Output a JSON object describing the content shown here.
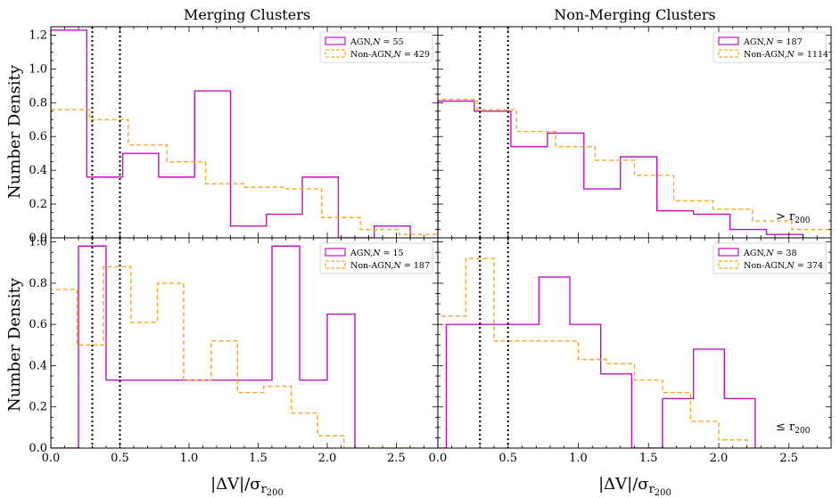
{
  "figure": {
    "col_titles": [
      "Merging Clusters",
      "Non-Merging Clusters"
    ],
    "ylabel": "Number Density",
    "xlabel_main": "|ΔV|/σ",
    "xlabel_sub": "r",
    "xlabel_subsub": "200"
  },
  "colors": {
    "agn": "#c010c0",
    "nonagn": "#f5a623",
    "vline": "#000000"
  },
  "chart_data": [
    {
      "type": "step-histogram",
      "panel": "top-left",
      "title": "Merging Clusters",
      "annotation": "",
      "xlim": [
        0,
        2.8
      ],
      "ylim": [
        0,
        1.25
      ],
      "xticks": [
        "0.0",
        "0.5",
        "1.0",
        "1.5",
        "2.0",
        "2.5"
      ],
      "yticks": [
        "0.0",
        "0.2",
        "0.4",
        "0.6",
        "0.8",
        "1.0",
        "1.2"
      ],
      "ytick_values": [
        0,
        0.2,
        0.4,
        0.6,
        0.8,
        1.0,
        1.2
      ],
      "vlines": [
        0.3,
        0.5
      ],
      "series": [
        {
          "name": "AGN,N = 55",
          "legend_base": "AGN,",
          "legend_n": "N",
          "legend_val": " = 55",
          "style": "solid",
          "edges": [
            0,
            0.26,
            0.52,
            0.78,
            1.04,
            1.3,
            1.56,
            1.82,
            2.08,
            2.34,
            2.6
          ],
          "values": [
            1.23,
            0.36,
            0.5,
            0.36,
            0.87,
            0.07,
            0.14,
            0.36,
            0.0,
            0.07
          ]
        },
        {
          "name": "Non-AGN,N = 429",
          "legend_base": "Non-AGN,",
          "legend_n": "N",
          "legend_val": " = 429",
          "style": "dashed",
          "edges": [
            0,
            0.28,
            0.56,
            0.84,
            1.12,
            1.4,
            1.68,
            1.96,
            2.24,
            2.52,
            2.8
          ],
          "values": [
            0.76,
            0.7,
            0.55,
            0.45,
            0.32,
            0.3,
            0.29,
            0.12,
            0.05,
            0.02
          ]
        }
      ]
    },
    {
      "type": "step-histogram",
      "panel": "top-right",
      "title": "Non-Merging Clusters",
      "annotation": "> r",
      "annotation_sub": "200",
      "xlim": [
        0,
        2.8
      ],
      "ylim": [
        0,
        1.25
      ],
      "xticks": [
        "0.0",
        "0.5",
        "1.0",
        "1.5",
        "2.0",
        "2.5"
      ],
      "yticks": [],
      "ytick_values": [
        0,
        0.2,
        0.4,
        0.6,
        0.8,
        1.0,
        1.2
      ],
      "vlines": [
        0.3,
        0.5
      ],
      "series": [
        {
          "name": "AGN,N = 187",
          "legend_base": "AGN,",
          "legend_n": "N",
          "legend_val": " = 187",
          "style": "solid",
          "edges": [
            0,
            0.26,
            0.52,
            0.78,
            1.04,
            1.3,
            1.56,
            1.82,
            2.08,
            2.34,
            2.6
          ],
          "values": [
            0.81,
            0.75,
            0.54,
            0.62,
            0.29,
            0.48,
            0.16,
            0.14,
            0.05,
            0.02
          ]
        },
        {
          "name": "Non-AGN,N = 1114",
          "legend_base": "Non-AGN,",
          "legend_n": "N",
          "legend_val": " = 1114",
          "style": "dashed",
          "edges": [
            0,
            0.28,
            0.56,
            0.84,
            1.12,
            1.4,
            1.68,
            1.96,
            2.24,
            2.52,
            2.8
          ],
          "values": [
            0.82,
            0.76,
            0.63,
            0.54,
            0.46,
            0.37,
            0.22,
            0.17,
            0.1,
            0.05
          ]
        }
      ]
    },
    {
      "type": "step-histogram",
      "panel": "bottom-left",
      "title": "",
      "annotation": "",
      "xlim": [
        0,
        2.8
      ],
      "ylim": [
        0,
        1.02
      ],
      "xticks": [
        "0.0",
        "0.5",
        "1.0",
        "1.5",
        "2.0",
        "2.5"
      ],
      "yticks": [
        "0.0",
        "0.2",
        "0.4",
        "0.6",
        "0.8",
        "1.0"
      ],
      "ytick_values": [
        0,
        0.2,
        0.4,
        0.6,
        0.8,
        1.0
      ],
      "vlines": [
        0.3,
        0.5
      ],
      "series": [
        {
          "name": "AGN,N = 15",
          "legend_base": "AGN,",
          "legend_n": "N",
          "legend_val": " = 15",
          "style": "solid",
          "edges": [
            0,
            0.2,
            0.4,
            0.6,
            0.8,
            1.0,
            1.2,
            1.4,
            1.6,
            1.8,
            2.0,
            2.2
          ],
          "values": [
            0.0,
            0.98,
            0.33,
            0.33,
            0.33,
            0.33,
            0.33,
            0.33,
            0.98,
            0.33,
            0.65
          ]
        },
        {
          "name": "Non-AGN,N = 187",
          "legend_base": "Non-AGN,",
          "legend_n": "N",
          "legend_val": " = 187",
          "style": "dashed",
          "edges": [
            0,
            0.19,
            0.38,
            0.58,
            0.77,
            0.96,
            1.16,
            1.35,
            1.54,
            1.74,
            1.93,
            2.12,
            2.32,
            2.51,
            2.7
          ],
          "values": [
            0.77,
            0.5,
            0.88,
            0.61,
            0.8,
            0.33,
            0.52,
            0.27,
            0.3,
            0.17,
            0.06,
            0.0,
            0.0,
            0.0
          ]
        }
      ]
    },
    {
      "type": "step-histogram",
      "panel": "bottom-right",
      "title": "",
      "annotation": "≤ r",
      "annotation_sub": "200",
      "xlim": [
        0,
        2.8
      ],
      "ylim": [
        0,
        1.02
      ],
      "xticks": [
        "0.0",
        "0.5",
        "1.0",
        "1.5",
        "2.0",
        "2.5"
      ],
      "yticks": [],
      "ytick_values": [
        0,
        0.2,
        0.4,
        0.6,
        0.8,
        1.0
      ],
      "vlines": [
        0.3,
        0.5
      ],
      "series": [
        {
          "name": "AGN,N = 38",
          "legend_base": "AGN,",
          "legend_n": "N",
          "legend_val": " = 38",
          "style": "solid",
          "edges": [
            0,
            0.06,
            0.28,
            0.5,
            0.72,
            0.94,
            1.16,
            1.38,
            1.6,
            1.82,
            2.04,
            2.26
          ],
          "values": [
            0.0,
            0.6,
            0.6,
            0.6,
            0.83,
            0.6,
            0.36,
            0.0,
            0.24,
            0.48,
            0.24
          ]
        },
        {
          "name": "Non-AGN,N = 374",
          "legend_base": "Non-AGN,",
          "legend_n": "N",
          "legend_val": " = 374",
          "style": "dashed",
          "edges": [
            0,
            0.2,
            0.4,
            0.6,
            0.8,
            1.0,
            1.2,
            1.4,
            1.6,
            1.8,
            2.0,
            2.2,
            2.4
          ],
          "values": [
            0.64,
            0.92,
            0.52,
            0.52,
            0.52,
            0.43,
            0.41,
            0.33,
            0.27,
            0.13,
            0.04,
            0.0
          ]
        }
      ]
    }
  ]
}
